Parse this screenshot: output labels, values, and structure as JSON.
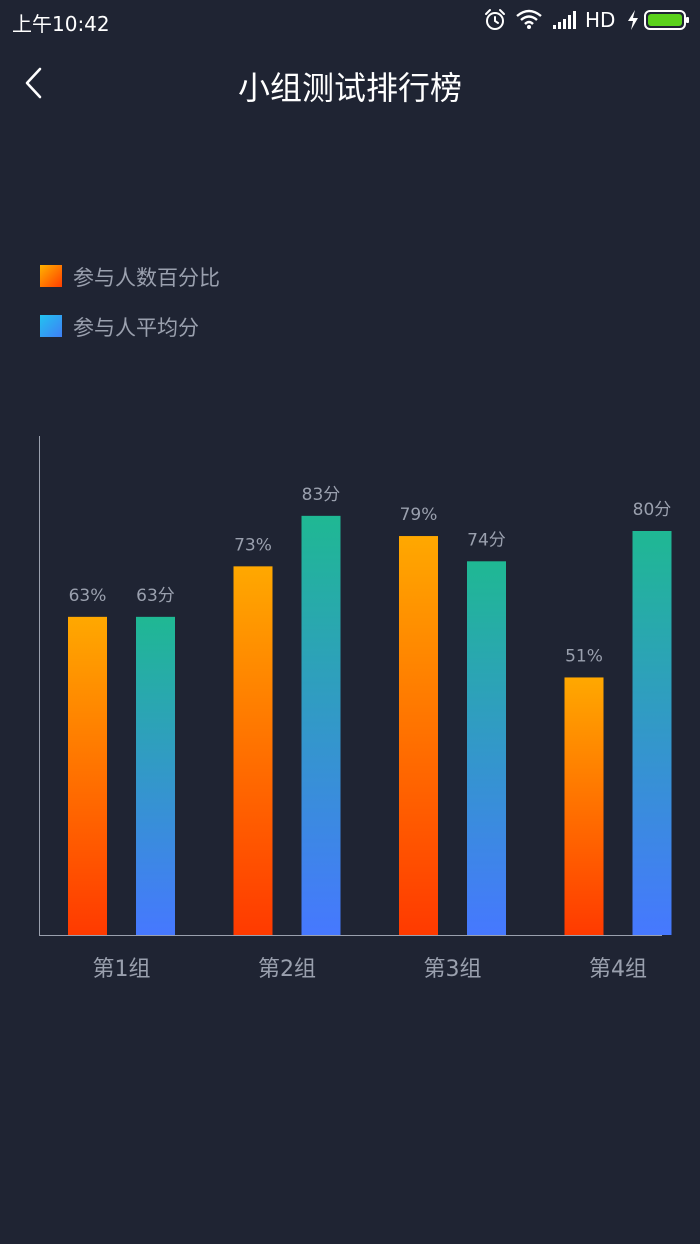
{
  "status_bar": {
    "time": "上午10:42",
    "network": "HD",
    "icons": [
      "alarm-icon",
      "wifi-icon",
      "signal-icon",
      "charging-icon",
      "battery-icon"
    ],
    "battery_color": "#5bd21c"
  },
  "header": {
    "title": "小组测试排行榜",
    "back_icon": "chevron-left-icon"
  },
  "legend": {
    "items": [
      {
        "label": "参与人数百分比",
        "color": "#ff7a00"
      },
      {
        "label": "参与人平均分",
        "color": "#3aa6f0"
      }
    ]
  },
  "chart_data": {
    "type": "bar",
    "categories": [
      "第1组",
      "第2组",
      "第3组",
      "第4组"
    ],
    "series": [
      {
        "name": "参与人数百分比",
        "values": [
          63,
          73,
          79,
          51
        ],
        "labels": [
          "63%",
          "73%",
          "79%",
          "51%"
        ]
      },
      {
        "name": "参与人平均分",
        "values": [
          63,
          83,
          74,
          80
        ],
        "labels": [
          "63分",
          "83分",
          "74分",
          "80分"
        ]
      }
    ],
    "ylim": [
      0,
      100
    ],
    "legend_position": "top-left",
    "grid": false,
    "colors": {
      "series0_top": "#ffa800",
      "series0_bottom": "#ff3a00",
      "series1_top": "#1fb893",
      "series1_bottom": "#4678ff",
      "axis": "#9aa0ae",
      "text": "#9aa0ae"
    }
  }
}
